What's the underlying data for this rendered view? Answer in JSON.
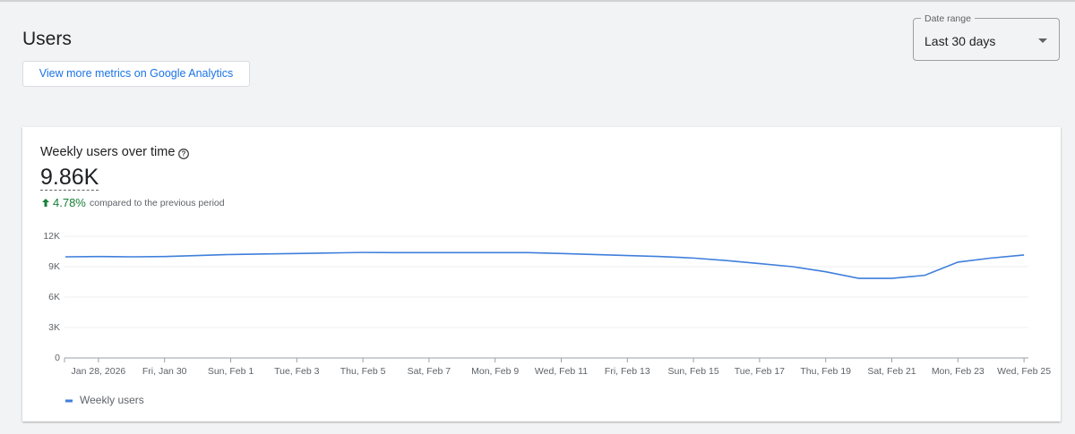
{
  "header": {
    "title": "Users",
    "button": "View more metrics on Google Analytics"
  },
  "date_range": {
    "label": "Date range",
    "value": "Last 30 days"
  },
  "card": {
    "title": "Weekly users over time",
    "metric": "9.86K",
    "change": "4.78%",
    "change_note": "compared to the previous period"
  },
  "chart_data": {
    "type": "line",
    "categories": [
      null,
      "Jan 28, 2026",
      null,
      "Fri, Jan 30",
      null,
      "Sun, Feb 1",
      null,
      "Tue, Feb 3",
      null,
      "Thu, Feb 5",
      null,
      "Sat, Feb 7",
      null,
      "Mon, Feb 9",
      null,
      "Wed, Feb 11",
      null,
      "Fri, Feb 13",
      null,
      "Sun, Feb 15",
      null,
      "Tue, Feb 17",
      null,
      "Thu, Feb 19",
      null,
      "Sat, Feb 21",
      null,
      "Mon, Feb 23",
      null,
      "Wed, Feb 25"
    ],
    "series": [
      {
        "name": "Weekly users",
        "color": "#3f7fdc",
        "values": [
          9970,
          10000,
          9970,
          10000,
          10100,
          10200,
          10250,
          10300,
          10350,
          10400,
          10380,
          10380,
          10380,
          10380,
          10380,
          10300,
          10200,
          10100,
          10000,
          9850,
          9600,
          9300,
          9000,
          8500,
          7850,
          7850,
          8150,
          9450,
          9850,
          10150
        ]
      }
    ],
    "ylim": [
      0,
      12000
    ],
    "yticks": [
      0,
      {
        "value": 3000,
        "label": "3K"
      },
      {
        "value": 6000,
        "label": "6K"
      },
      {
        "value": 9000,
        "label": "9K"
      },
      {
        "value": 12000,
        "label": "12K"
      }
    ],
    "grid": true
  }
}
